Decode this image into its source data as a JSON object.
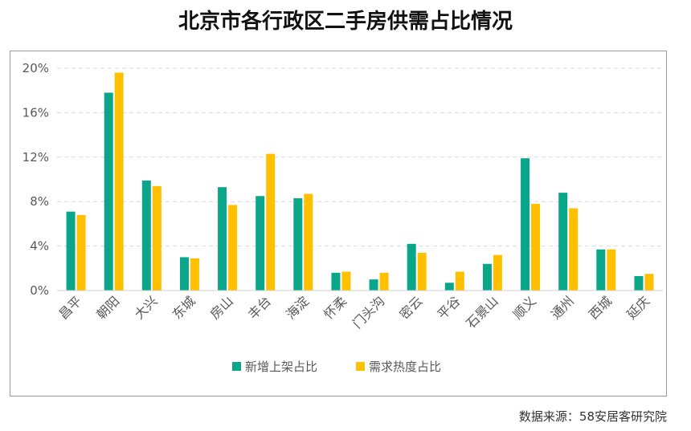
{
  "page": {
    "title": "北京市各行政区二手房供需占比情况",
    "source": "数据来源：58安居客研究院"
  },
  "chart_data": {
    "type": "bar",
    "title": "北京市各行政区二手房供需占比情况",
    "xlabel": "",
    "ylabel": "",
    "ylim": [
      0,
      20
    ],
    "yticks": [
      0,
      4,
      8,
      12,
      16,
      20
    ],
    "ytick_labels": [
      "0%",
      "4%",
      "8%",
      "12%",
      "16%",
      "20%"
    ],
    "grid": true,
    "legend_position": "bottom",
    "categories": [
      "昌平",
      "朝阳",
      "大兴",
      "东城",
      "房山",
      "丰台",
      "海淀",
      "怀柔",
      "门头沟",
      "密云",
      "平谷",
      "石景山",
      "顺义",
      "通州",
      "西城",
      "延庆"
    ],
    "series": [
      {
        "name": "新增上架占比",
        "color": "#0aa68a",
        "values": [
          7.1,
          17.8,
          9.9,
          3.0,
          9.3,
          8.5,
          8.3,
          1.6,
          1.0,
          4.2,
          0.7,
          2.4,
          11.9,
          8.8,
          3.7,
          1.3
        ]
      },
      {
        "name": "需求热度占比",
        "color": "#ffc000",
        "values": [
          6.8,
          19.6,
          9.4,
          2.9,
          7.7,
          12.3,
          8.7,
          1.7,
          1.6,
          3.4,
          1.7,
          3.2,
          7.8,
          7.4,
          3.7,
          1.5
        ]
      }
    ]
  }
}
